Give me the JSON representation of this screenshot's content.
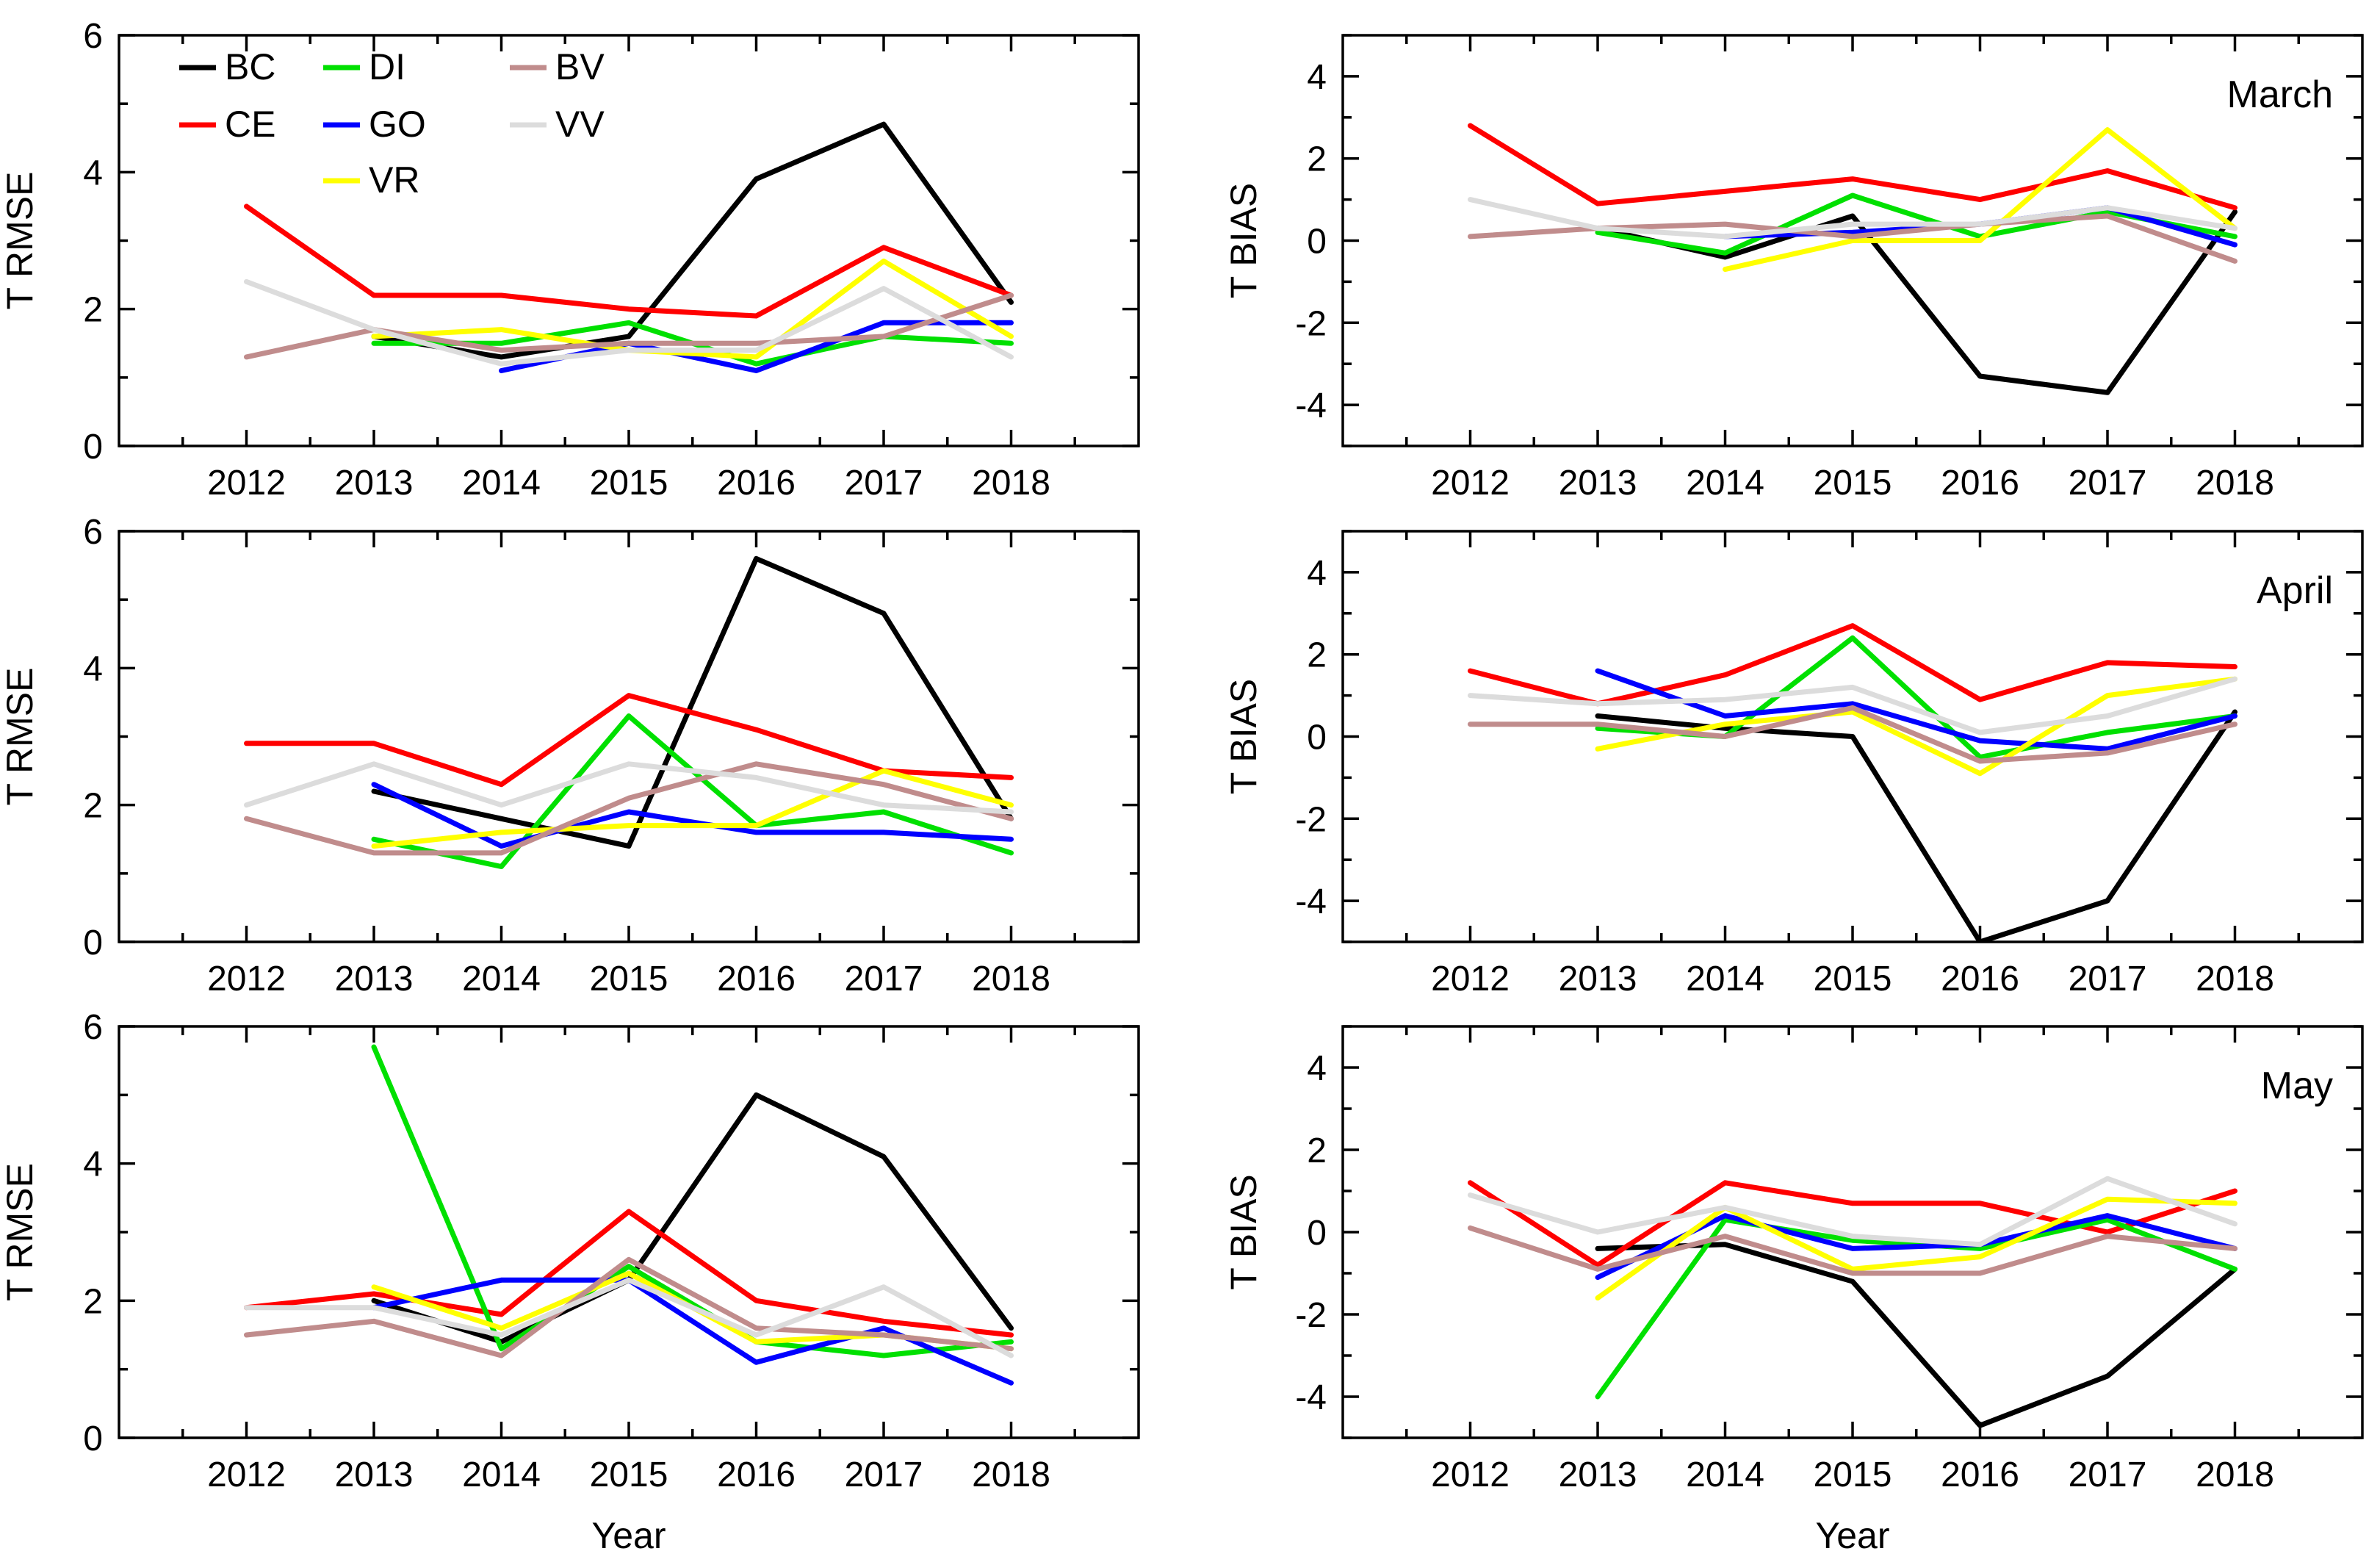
{
  "chart_data": [
    {
      "type": "line",
      "panel": "rmse-march",
      "ylabel": "T RMSE",
      "xlabel": "",
      "annotation": "",
      "x": [
        "2012",
        "2013",
        "2014",
        "2015",
        "2016",
        "2017",
        "2018"
      ],
      "ylim": [
        0,
        6
      ],
      "yticks": [
        "0",
        "2",
        "4",
        "6"
      ],
      "series": [
        {
          "name": "BC",
          "color": "#000000",
          "values": [
            null,
            1.6,
            1.3,
            1.6,
            3.9,
            4.7,
            2.1
          ]
        },
        {
          "name": "CE",
          "color": "#ff0000",
          "values": [
            3.5,
            2.2,
            2.2,
            2.0,
            1.9,
            2.9,
            2.2
          ]
        },
        {
          "name": "DI",
          "color": "#00e000",
          "values": [
            null,
            1.5,
            1.5,
            1.8,
            1.2,
            1.6,
            1.5
          ]
        },
        {
          "name": "GO",
          "color": "#0000ff",
          "values": [
            null,
            null,
            1.1,
            1.5,
            1.1,
            1.8,
            1.8
          ]
        },
        {
          "name": "VR",
          "color": "#ffff00",
          "values": [
            null,
            1.6,
            1.7,
            1.4,
            1.3,
            2.7,
            1.6
          ]
        },
        {
          "name": "BV",
          "color": "#c08c8c",
          "values": [
            1.3,
            1.7,
            1.4,
            1.5,
            1.5,
            1.6,
            2.2
          ]
        },
        {
          "name": "VV",
          "color": "#dcdcdc",
          "values": [
            2.4,
            1.7,
            1.2,
            1.4,
            1.4,
            2.3,
            1.3
          ]
        }
      ]
    },
    {
      "type": "line",
      "panel": "bias-march",
      "ylabel": "T BIAS",
      "xlabel": "",
      "annotation": "March",
      "x": [
        "2012",
        "2013",
        "2014",
        "2015",
        "2016",
        "2017",
        "2018"
      ],
      "ylim": [
        -5,
        5
      ],
      "yticks": [
        "-4",
        "-2",
        "0",
        "2",
        "4"
      ],
      "series": [
        {
          "name": "BC",
          "color": "#000000",
          "values": [
            null,
            0.3,
            -0.4,
            0.6,
            -3.3,
            -3.7,
            0.7
          ]
        },
        {
          "name": "CE",
          "color": "#ff0000",
          "values": [
            2.8,
            0.9,
            1.2,
            1.5,
            1.0,
            1.7,
            0.8
          ]
        },
        {
          "name": "DI",
          "color": "#00e000",
          "values": [
            null,
            0.2,
            -0.3,
            1.1,
            0.1,
            0.7,
            0.1
          ]
        },
        {
          "name": "GO",
          "color": "#0000ff",
          "values": [
            null,
            null,
            0.1,
            0.2,
            0.4,
            0.8,
            -0.1
          ]
        },
        {
          "name": "VR",
          "color": "#ffff00",
          "values": [
            null,
            null,
            -0.7,
            0.0,
            0.0,
            2.7,
            0.3
          ]
        },
        {
          "name": "BV",
          "color": "#c08c8c",
          "values": [
            0.1,
            0.3,
            0.4,
            0.1,
            0.4,
            0.6,
            -0.5
          ]
        },
        {
          "name": "VV",
          "color": "#dcdcdc",
          "values": [
            1.0,
            0.3,
            0.1,
            0.4,
            0.4,
            0.8,
            0.3
          ]
        }
      ]
    },
    {
      "type": "line",
      "panel": "rmse-april",
      "ylabel": "T RMSE",
      "xlabel": "",
      "annotation": "",
      "x": [
        "2012",
        "2013",
        "2014",
        "2015",
        "2016",
        "2017",
        "2018"
      ],
      "ylim": [
        0,
        6
      ],
      "yticks": [
        "0",
        "2",
        "4",
        "6"
      ],
      "series": [
        {
          "name": "BC",
          "color": "#000000",
          "values": [
            null,
            2.2,
            1.8,
            1.4,
            5.6,
            4.8,
            1.8
          ]
        },
        {
          "name": "CE",
          "color": "#ff0000",
          "values": [
            2.9,
            2.9,
            2.3,
            3.6,
            3.1,
            2.5,
            2.4
          ]
        },
        {
          "name": "DI",
          "color": "#00e000",
          "values": [
            null,
            1.5,
            1.1,
            3.3,
            1.7,
            1.9,
            1.3
          ]
        },
        {
          "name": "GO",
          "color": "#0000ff",
          "values": [
            null,
            2.3,
            1.4,
            1.9,
            1.6,
            1.6,
            1.5
          ]
        },
        {
          "name": "VR",
          "color": "#ffff00",
          "values": [
            null,
            1.4,
            1.6,
            1.7,
            1.7,
            2.5,
            2.0
          ]
        },
        {
          "name": "BV",
          "color": "#c08c8c",
          "values": [
            1.8,
            1.3,
            1.3,
            2.1,
            2.6,
            2.3,
            1.8
          ]
        },
        {
          "name": "VV",
          "color": "#dcdcdc",
          "values": [
            2.0,
            2.6,
            2.0,
            2.6,
            2.4,
            2.0,
            1.9
          ]
        }
      ]
    },
    {
      "type": "line",
      "panel": "bias-april",
      "ylabel": "T BIAS",
      "xlabel": "",
      "annotation": "April",
      "x": [
        "2012",
        "2013",
        "2014",
        "2015",
        "2016",
        "2017",
        "2018"
      ],
      "ylim": [
        -5,
        5
      ],
      "yticks": [
        "-4",
        "-2",
        "0",
        "2",
        "4"
      ],
      "series": [
        {
          "name": "BC",
          "color": "#000000",
          "values": [
            null,
            0.5,
            0.2,
            0.0,
            -5.0,
            -4.0,
            0.6
          ]
        },
        {
          "name": "CE",
          "color": "#ff0000",
          "values": [
            1.6,
            0.8,
            1.5,
            2.7,
            0.9,
            1.8,
            1.7
          ]
        },
        {
          "name": "DI",
          "color": "#00e000",
          "values": [
            null,
            0.2,
            0.0,
            2.4,
            -0.5,
            0.1,
            0.5
          ]
        },
        {
          "name": "GO",
          "color": "#0000ff",
          "values": [
            null,
            1.6,
            0.5,
            0.8,
            -0.1,
            -0.3,
            0.5
          ]
        },
        {
          "name": "VR",
          "color": "#ffff00",
          "values": [
            null,
            -0.3,
            0.3,
            0.6,
            -0.9,
            1.0,
            1.4
          ]
        },
        {
          "name": "BV",
          "color": "#c08c8c",
          "values": [
            0.3,
            0.3,
            0.0,
            0.7,
            -0.6,
            -0.4,
            0.3
          ]
        },
        {
          "name": "VV",
          "color": "#dcdcdc",
          "values": [
            1.0,
            0.8,
            0.9,
            1.2,
            0.1,
            0.5,
            1.4
          ]
        }
      ]
    },
    {
      "type": "line",
      "panel": "rmse-may",
      "ylabel": "T RMSE",
      "xlabel": "Year",
      "annotation": "",
      "x": [
        "2012",
        "2013",
        "2014",
        "2015",
        "2016",
        "2017",
        "2018"
      ],
      "ylim": [
        0,
        6
      ],
      "yticks": [
        "0",
        "2",
        "4",
        "6"
      ],
      "series": [
        {
          "name": "BC",
          "color": "#000000",
          "values": [
            null,
            2.0,
            1.4,
            2.3,
            5.0,
            4.1,
            1.6
          ]
        },
        {
          "name": "CE",
          "color": "#ff0000",
          "values": [
            1.9,
            2.1,
            1.8,
            3.3,
            2.0,
            1.7,
            1.5
          ]
        },
        {
          "name": "DI",
          "color": "#00e000",
          "values": [
            null,
            5.7,
            1.3,
            2.5,
            1.4,
            1.2,
            1.4
          ]
        },
        {
          "name": "GO",
          "color": "#0000ff",
          "values": [
            null,
            1.9,
            2.3,
            2.3,
            1.1,
            1.6,
            0.8
          ]
        },
        {
          "name": "VR",
          "color": "#ffff00",
          "values": [
            null,
            2.2,
            1.6,
            2.4,
            1.4,
            1.5,
            1.3
          ]
        },
        {
          "name": "BV",
          "color": "#c08c8c",
          "values": [
            1.5,
            1.7,
            1.2,
            2.6,
            1.6,
            1.5,
            1.3
          ]
        },
        {
          "name": "VV",
          "color": "#dcdcdc",
          "values": [
            1.9,
            1.9,
            1.5,
            2.3,
            1.5,
            2.2,
            1.2
          ]
        }
      ]
    },
    {
      "type": "line",
      "panel": "bias-may",
      "ylabel": "T BIAS",
      "xlabel": "Year",
      "annotation": "May",
      "x": [
        "2012",
        "2013",
        "2014",
        "2015",
        "2016",
        "2017",
        "2018"
      ],
      "ylim": [
        -5,
        5
      ],
      "yticks": [
        "-4",
        "-2",
        "0",
        "2",
        "4"
      ],
      "series": [
        {
          "name": "BC",
          "color": "#000000",
          "values": [
            null,
            -0.4,
            -0.3,
            -1.2,
            -4.7,
            -3.5,
            -0.9
          ]
        },
        {
          "name": "CE",
          "color": "#ff0000",
          "values": [
            1.2,
            -0.8,
            1.2,
            0.7,
            0.7,
            0.0,
            1.0
          ]
        },
        {
          "name": "DI",
          "color": "#00e000",
          "values": [
            null,
            -4.0,
            0.3,
            -0.2,
            -0.4,
            0.3,
            -0.9
          ]
        },
        {
          "name": "GO",
          "color": "#0000ff",
          "values": [
            null,
            -1.1,
            0.4,
            -0.4,
            -0.3,
            0.4,
            -0.4
          ]
        },
        {
          "name": "VR",
          "color": "#ffff00",
          "values": [
            null,
            -1.6,
            0.6,
            -0.9,
            -0.6,
            0.8,
            0.7
          ]
        },
        {
          "name": "BV",
          "color": "#c08c8c",
          "values": [
            0.1,
            -0.9,
            -0.1,
            -1.0,
            -1.0,
            -0.1,
            -0.4
          ]
        },
        {
          "name": "VV",
          "color": "#dcdcdc",
          "values": [
            0.9,
            0.0,
            0.6,
            -0.1,
            -0.3,
            1.3,
            0.2
          ]
        }
      ]
    }
  ],
  "legend": {
    "placement": "top-left of first panel",
    "entries": [
      "BC",
      "CE",
      "DI",
      "GO",
      "VR",
      "BV",
      "VV"
    ]
  }
}
